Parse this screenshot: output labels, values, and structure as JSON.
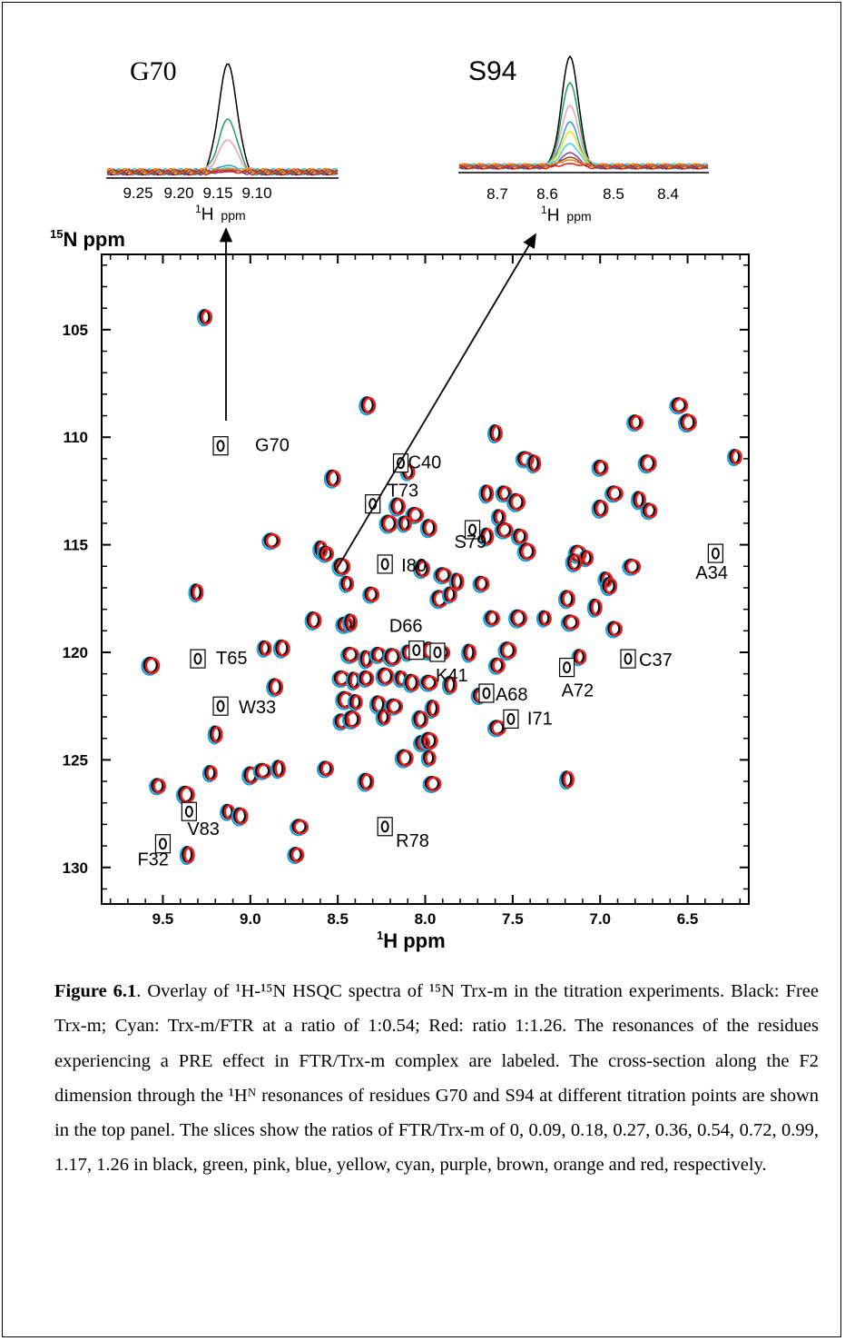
{
  "figure": {
    "insets": [
      {
        "label": "G70",
        "ticks": [
          "9.25",
          "9.20",
          "9.15",
          "9.10"
        ],
        "axis_label": {
          "nucleus": "1",
          "letter": "H",
          "unit": "ppm"
        }
      },
      {
        "label": "S94",
        "ticks": [
          "8.7",
          "8.6",
          "8.5",
          "8.4"
        ],
        "axis_label": {
          "nucleus": "1",
          "letter": "H",
          "unit": "ppm"
        }
      }
    ],
    "y_axis_title": {
      "nucleus": "15",
      "text": "N ppm"
    },
    "x_axis_title": {
      "nucleus": "1",
      "text": "H ppm"
    },
    "slice_colors": [
      "#000000",
      "#20a060",
      "#f2a0b0",
      "#2aa0d0",
      "#f2e000",
      "#40d0e0",
      "#8a3fa0",
      "#8a4a20",
      "#f07a10",
      "#e02020"
    ]
  },
  "chart_data": {
    "type": "scatter",
    "x_ticks": [
      "9.5",
      "9.0",
      "8.5",
      "8.0",
      "7.5",
      "7.0",
      "6.5"
    ],
    "y_ticks": [
      "105",
      "110",
      "115",
      "120",
      "125",
      "130"
    ],
    "x_range": [
      9.85,
      6.15
    ],
    "y_range": [
      101.5,
      131.7
    ],
    "series_colors": {
      "free": "#000000",
      "ratio_0_54": "#1aa0d8",
      "ratio_1_26": "#e02020"
    },
    "labeled_residues": [
      {
        "label": "G70",
        "x": 9.17,
        "y": 110.4
      },
      {
        "label": "C40",
        "x": 8.14,
        "y": 111.2
      },
      {
        "label": "T73",
        "x": 8.3,
        "y": 113.1
      },
      {
        "label": "S79",
        "x": 7.73,
        "y": 114.3
      },
      {
        "label": "I80",
        "x": 8.23,
        "y": 115.9
      },
      {
        "label": "A34",
        "x": 6.34,
        "y": 115.4
      },
      {
        "label": "D66",
        "x": 8.05,
        "y": 119.9
      },
      {
        "label": "T65",
        "x": 9.3,
        "y": 120.3
      },
      {
        "label": "C37",
        "x": 6.84,
        "y": 120.3
      },
      {
        "label": "A72",
        "x": 7.19,
        "y": 120.7
      },
      {
        "label": "K41",
        "x": 7.93,
        "y": 120.0
      },
      {
        "label": "A68",
        "x": 7.65,
        "y": 121.9
      },
      {
        "label": "W33",
        "x": 9.17,
        "y": 122.5
      },
      {
        "label": "I71",
        "x": 7.51,
        "y": 123.1
      },
      {
        "label": "V83",
        "x": 9.35,
        "y": 127.4
      },
      {
        "label": "F32",
        "x": 9.5,
        "y": 128.9
      },
      {
        "label": "R78",
        "x": 8.23,
        "y": 128.1
      }
    ],
    "peaks": [
      [
        9.26,
        104.4
      ],
      [
        8.33,
        108.5
      ],
      [
        6.55,
        108.5
      ],
      [
        7.6,
        109.8
      ],
      [
        6.8,
        109.3
      ],
      [
        6.5,
        109.3
      ],
      [
        6.23,
        110.9
      ],
      [
        8.53,
        111.9
      ],
      [
        7.43,
        111.0
      ],
      [
        7.38,
        111.2
      ],
      [
        7.0,
        111.4
      ],
      [
        6.73,
        111.2
      ],
      [
        8.1,
        111.6
      ],
      [
        8.16,
        113.2
      ],
      [
        8.06,
        113.6
      ],
      [
        7.65,
        112.6
      ],
      [
        7.55,
        112.6
      ],
      [
        7.48,
        113.0
      ],
      [
        7.58,
        113.7
      ],
      [
        7.0,
        113.3
      ],
      [
        6.92,
        112.6
      ],
      [
        6.78,
        112.9
      ],
      [
        6.72,
        113.4
      ],
      [
        8.21,
        114.0
      ],
      [
        8.12,
        114.0
      ],
      [
        7.98,
        114.2
      ],
      [
        7.55,
        114.3
      ],
      [
        7.65,
        114.6
      ],
      [
        7.46,
        114.6
      ],
      [
        7.13,
        115.4
      ],
      [
        7.08,
        115.6
      ],
      [
        7.15,
        115.8
      ],
      [
        8.88,
        114.8
      ],
      [
        8.6,
        115.2
      ],
      [
        8.57,
        115.4
      ],
      [
        8.48,
        116.0
      ],
      [
        8.45,
        116.8
      ],
      [
        8.02,
        116.1
      ],
      [
        7.9,
        116.4
      ],
      [
        7.82,
        116.7
      ],
      [
        7.68,
        116.8
      ],
      [
        7.42,
        115.3
      ],
      [
        6.97,
        116.6
      ],
      [
        6.95,
        116.9
      ],
      [
        6.82,
        116.0
      ],
      [
        9.31,
        117.2
      ],
      [
        8.31,
        117.3
      ],
      [
        7.92,
        117.5
      ],
      [
        7.86,
        117.3
      ],
      [
        8.64,
        118.5
      ],
      [
        8.46,
        118.7
      ],
      [
        8.43,
        118.6
      ],
      [
        7.62,
        118.4
      ],
      [
        7.47,
        118.4
      ],
      [
        7.32,
        118.4
      ],
      [
        7.19,
        117.5
      ],
      [
        7.17,
        118.6
      ],
      [
        7.03,
        117.9
      ],
      [
        6.92,
        118.9
      ],
      [
        9.57,
        120.6
      ],
      [
        8.92,
        119.8
      ],
      [
        8.82,
        119.8
      ],
      [
        8.43,
        120.1
      ],
      [
        8.34,
        120.3
      ],
      [
        8.27,
        120.1
      ],
      [
        8.19,
        120.2
      ],
      [
        8.1,
        120.0
      ],
      [
        7.98,
        119.9
      ],
      [
        7.91,
        120.0
      ],
      [
        7.75,
        120.0
      ],
      [
        7.59,
        120.6
      ],
      [
        7.53,
        119.9
      ],
      [
        7.12,
        120.2
      ],
      [
        8.86,
        121.6
      ],
      [
        8.48,
        121.2
      ],
      [
        8.41,
        121.3
      ],
      [
        8.34,
        121.2
      ],
      [
        8.23,
        121.1
      ],
      [
        8.14,
        121.2
      ],
      [
        8.08,
        121.4
      ],
      [
        7.98,
        121.4
      ],
      [
        7.86,
        121.5
      ],
      [
        7.69,
        122.0
      ],
      [
        8.46,
        122.2
      ],
      [
        8.4,
        122.3
      ],
      [
        8.27,
        122.4
      ],
      [
        8.18,
        122.5
      ],
      [
        7.96,
        122.6
      ],
      [
        8.48,
        123.2
      ],
      [
        8.42,
        123.1
      ],
      [
        8.24,
        123.0
      ],
      [
        8.03,
        123.1
      ],
      [
        7.59,
        123.5
      ],
      [
        9.2,
        123.8
      ],
      [
        8.02,
        124.2
      ],
      [
        7.98,
        124.1
      ],
      [
        9.23,
        125.6
      ],
      [
        9.0,
        125.7
      ],
      [
        8.93,
        125.5
      ],
      [
        8.84,
        125.4
      ],
      [
        8.57,
        125.4
      ],
      [
        8.12,
        124.9
      ],
      [
        7.98,
        124.9
      ],
      [
        8.34,
        126.0
      ],
      [
        7.96,
        126.1
      ],
      [
        7.19,
        125.9
      ],
      [
        9.53,
        126.2
      ],
      [
        9.37,
        126.6
      ],
      [
        9.13,
        127.4
      ],
      [
        9.06,
        127.6
      ],
      [
        8.72,
        128.1
      ],
      [
        9.36,
        129.4
      ],
      [
        8.74,
        129.4
      ]
    ]
  },
  "caption": {
    "label": "Figure 6.1",
    "text": ". Overlay of ¹H-¹⁵N HSQC spectra of ¹⁵N Trx-m in the titration experiments. Black: Free Trx-m; Cyan: Trx-m/FTR at a ratio of 1:0.54; Red: ratio 1:1.26. The resonances of the residues experiencing a PRE effect in FTR/Trx-m complex are labeled. The cross-section along the F2 dimension through the ¹Hᴺ resonances of residues G70 and S94 at different titration points are shown in the top panel. The slices show the ratios of FTR/Trx-m of 0, 0.09, 0.18, 0.27, 0.36, 0.54, 0.72, 0.99, 1.17, 1.26 in black, green, pink, blue, yellow, cyan, purple, brown, orange and red, respectively."
  }
}
